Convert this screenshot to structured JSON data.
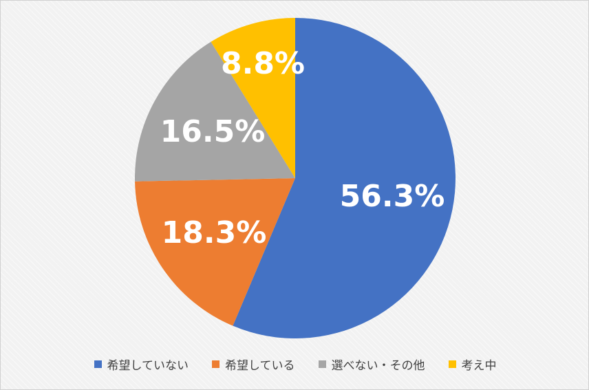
{
  "chart_data": {
    "type": "pie",
    "slices": [
      {
        "label": "希望していない",
        "value": 56.3,
        "value_label": "56.3%",
        "color": "#4472C4"
      },
      {
        "label": "希望している",
        "value": 18.3,
        "value_label": "18.3%",
        "color": "#ED7D31"
      },
      {
        "label": "選べない・その他",
        "value": 16.5,
        "value_label": "16.5%",
        "color": "#A5A5A5"
      },
      {
        "label": "考え中",
        "value": 8.8,
        "value_label": "8.8%",
        "color": "#FFC000"
      }
    ],
    "start_angle_deg": 0,
    "direction": "clockwise",
    "legend_position": "bottom",
    "title": ""
  }
}
